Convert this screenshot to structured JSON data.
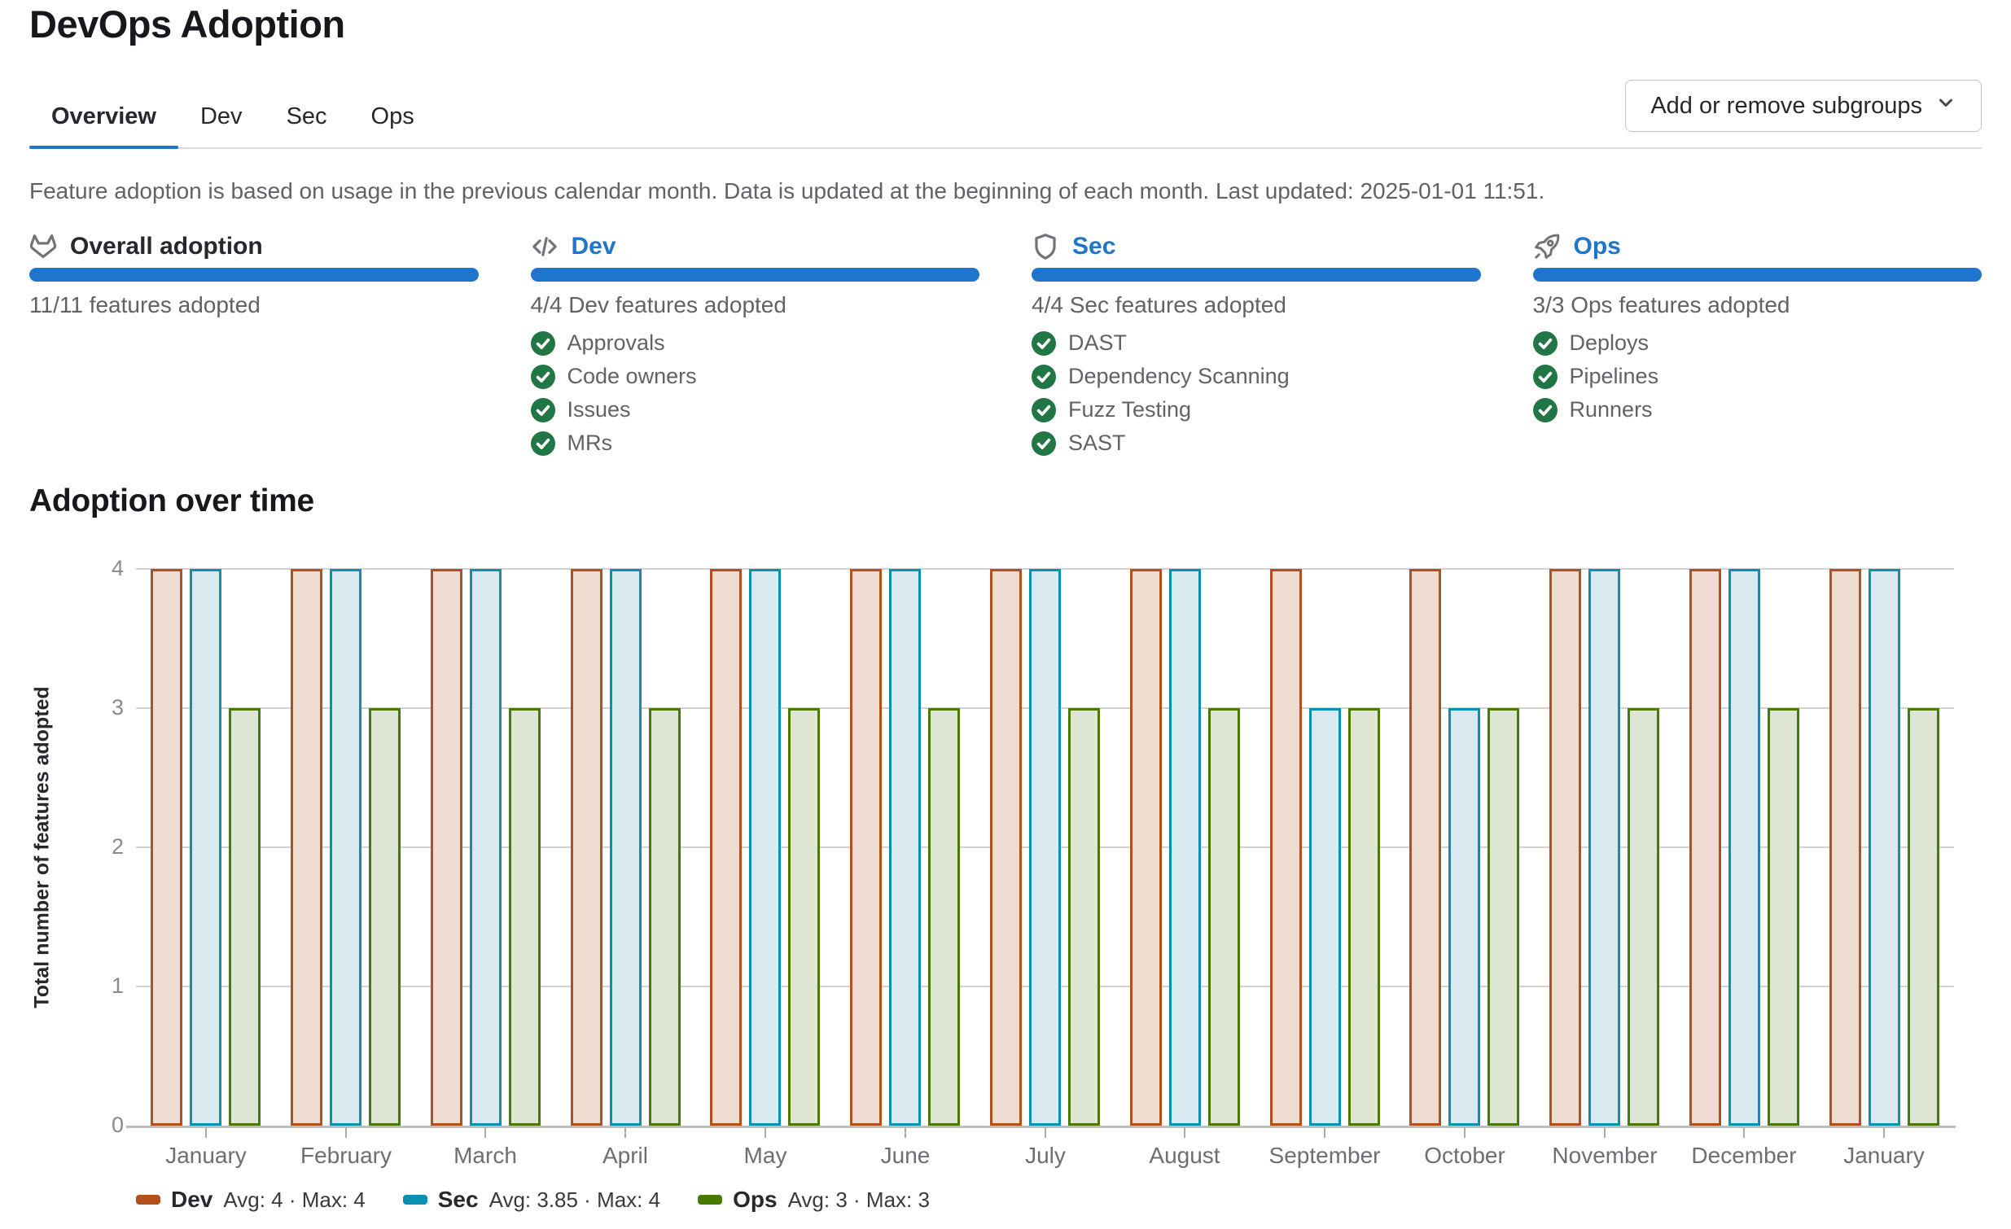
{
  "page": {
    "title": "DevOps Adoption"
  },
  "tabs": {
    "items": [
      {
        "label": "Overview",
        "active": true
      },
      {
        "label": "Dev",
        "active": false
      },
      {
        "label": "Sec",
        "active": false
      },
      {
        "label": "Ops",
        "active": false
      }
    ]
  },
  "toolbar": {
    "subgroups_button": "Add or remove subgroups",
    "subgroups_button_icon": "chevron-down-icon"
  },
  "description": "Feature adoption is based on usage in the previous calendar month. Data is updated at the beginning of each month. Last updated: 2025-01-01 11:51.",
  "cards": [
    {
      "icon": "tanuki-icon",
      "title": "Overall adoption",
      "title_is_link": false,
      "progress_percent": 100,
      "count": "11/11 features adopted",
      "features": []
    },
    {
      "icon": "code-icon",
      "title": "Dev",
      "title_is_link": true,
      "progress_percent": 100,
      "count": "4/4 Dev features adopted",
      "features": [
        "Approvals",
        "Code owners",
        "Issues",
        "MRs"
      ]
    },
    {
      "icon": "shield-icon",
      "title": "Sec",
      "title_is_link": true,
      "progress_percent": 100,
      "count": "4/4 Sec features adopted",
      "features": [
        "DAST",
        "Dependency Scanning",
        "Fuzz Testing",
        "SAST"
      ]
    },
    {
      "icon": "rocket-icon",
      "title": "Ops",
      "title_is_link": true,
      "progress_percent": 100,
      "count": "3/3 Ops features adopted",
      "features": [
        "Deploys",
        "Pipelines",
        "Runners"
      ]
    }
  ],
  "section": {
    "title": "Adoption over time"
  },
  "chart_data": {
    "type": "bar",
    "title": "Adoption over time",
    "xlabel": "",
    "ylabel": "Total number of features adopted",
    "ylim": [
      0,
      4
    ],
    "yticks": [
      0,
      1,
      2,
      3,
      4
    ],
    "grid": true,
    "legend_position": "bottom",
    "categories": [
      "January",
      "February",
      "March",
      "April",
      "May",
      "June",
      "July",
      "August",
      "September",
      "October",
      "November",
      "December",
      "January"
    ],
    "series": [
      {
        "name": "Dev",
        "values": [
          4,
          4,
          4,
          4,
          4,
          4,
          4,
          4,
          4,
          4,
          4,
          4,
          4
        ],
        "color": "#b2501e",
        "fill": "#f0ddd2",
        "legend_stats": "Avg: 4 · Max: 4"
      },
      {
        "name": "Sec",
        "values": [
          4,
          4,
          4,
          4,
          4,
          4,
          4,
          4,
          3,
          3,
          4,
          4,
          4
        ],
        "color": "#0a90b0",
        "fill": "#d8e9ef",
        "legend_stats": "Avg: 3.85 · Max: 4"
      },
      {
        "name": "Ops",
        "values": [
          3,
          3,
          3,
          3,
          3,
          3,
          3,
          3,
          3,
          3,
          3,
          3,
          3
        ],
        "color": "#487900",
        "fill": "#dee5d3",
        "legend_stats": "Avg: 3 · Max: 3"
      }
    ]
  },
  "colors": {
    "accent_blue": "#1f75cb",
    "progress_bar": "#1f75cb",
    "check_green": "#217645",
    "icon_gray": "#737278",
    "text_dark": "#28272d",
    "text_gray": "#626168",
    "divider": "#dcdcde"
  }
}
